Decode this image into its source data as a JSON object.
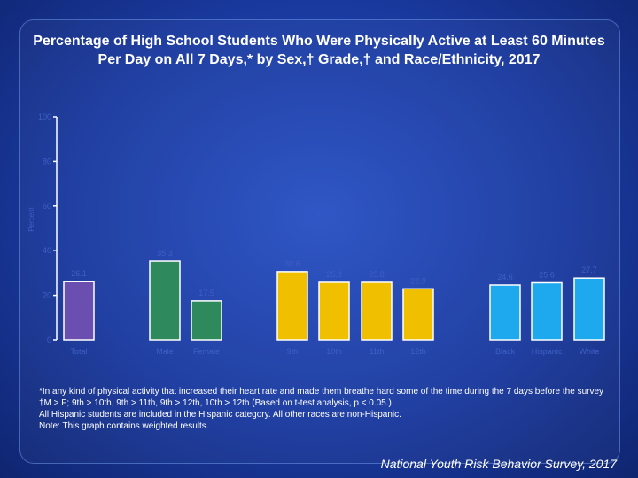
{
  "title": "Percentage of High School Students Who Were Physically Active at Least 60 Minutes Per Day on All 7 Days,* by Sex,† Grade,† and Race/Ethnicity, 2017",
  "footnotes": [
    "*In any kind of physical activity that increased their heart rate and made them breathe hard some of the time during the 7 days before the survey",
    "†M > F; 9th > 10th, 9th > 11th, 9th > 12th, 10th > 12th (Based on t-test analysis, p < 0.05.)",
    "All Hispanic students are included in the Hispanic category.  All other races are non-Hispanic.",
    "Note: This graph contains weighted results."
  ],
  "source": "National Youth Risk Behavior Survey, 2017",
  "chart_data": {
    "type": "bar",
    "ylabel": "Percent",
    "ylim": [
      0,
      100
    ],
    "yticks": [
      0,
      20,
      40,
      60,
      80,
      100
    ],
    "grid": false,
    "categories": [
      "Total",
      "Male",
      "Female",
      "9th",
      "10th",
      "11th",
      "12th",
      "Black",
      "Hispanic",
      "White"
    ],
    "values": [
      26.1,
      35.3,
      17.5,
      30.6,
      25.8,
      25.8,
      22.9,
      24.6,
      25.6,
      27.7
    ],
    "groups": [
      {
        "categories": [
          "Total"
        ],
        "color": "#6a4fb0"
      },
      {
        "categories": [
          "Male",
          "Female"
        ],
        "color": "#2e8a5c"
      },
      {
        "categories": [
          "9th",
          "10th",
          "11th",
          "12th"
        ],
        "color": "#f0c000"
      },
      {
        "categories": [
          "Black",
          "Hispanic",
          "White"
        ],
        "color": "#1ea8ee"
      }
    ]
  }
}
